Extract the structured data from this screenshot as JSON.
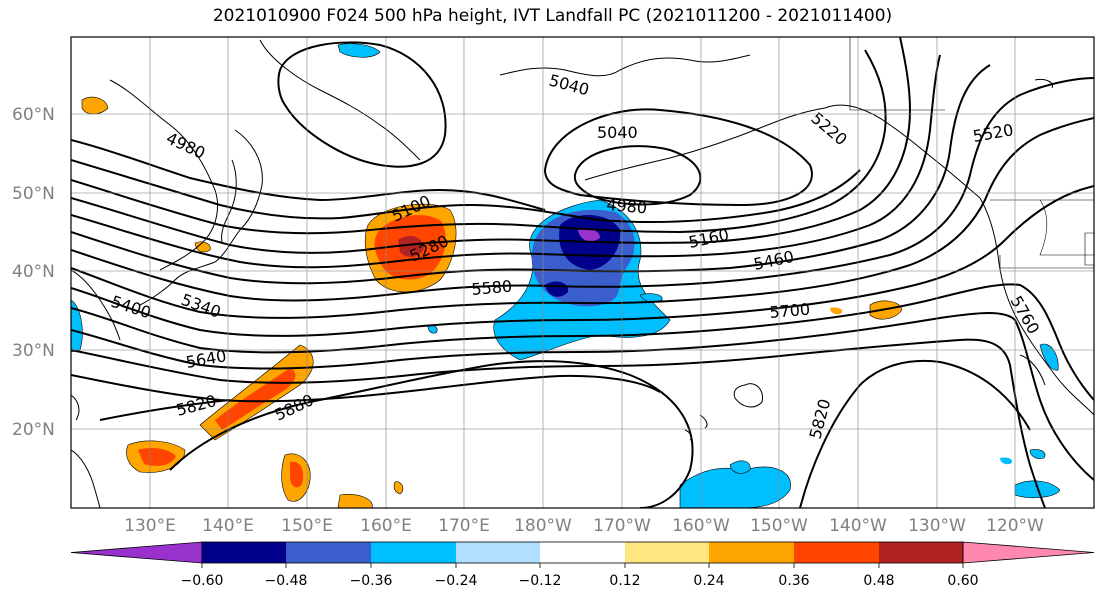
{
  "title": "2021010900 F024 500 hPa height, IVT Landfall PC (2021011200 - 2021011400)",
  "lat_labels": [
    "60°N",
    "50°N",
    "40°N",
    "30°N",
    "20°N"
  ],
  "lon_labels": [
    "130°E",
    "140°E",
    "150°E",
    "160°E",
    "170°E",
    "180°W",
    "170°W",
    "160°W",
    "150°W",
    "140°W",
    "130°W",
    "120°W"
  ],
  "contour_labels": [
    "5040",
    "5040",
    "4980",
    "4980",
    "5100",
    "5280",
    "5160",
    "5220",
    "5520",
    "5460",
    "5580",
    "5400",
    "5340",
    "5700",
    "5640",
    "5820",
    "5880",
    "5820",
    "5760"
  ],
  "colorbar": {
    "ticks": [
      "−0.60",
      "−0.48",
      "−0.36",
      "−0.24",
      "−0.12",
      "0.12",
      "0.24",
      "0.36",
      "0.48",
      "0.60"
    ],
    "colors": [
      "#9932cc",
      "#00008b",
      "#3a5fcd",
      "#00bfff",
      "#b2dfff",
      "#ffffff",
      "#ffe680",
      "#ffa500",
      "#ff4500",
      "#b22222",
      "#ff88b0",
      "#ff88b0"
    ]
  }
}
